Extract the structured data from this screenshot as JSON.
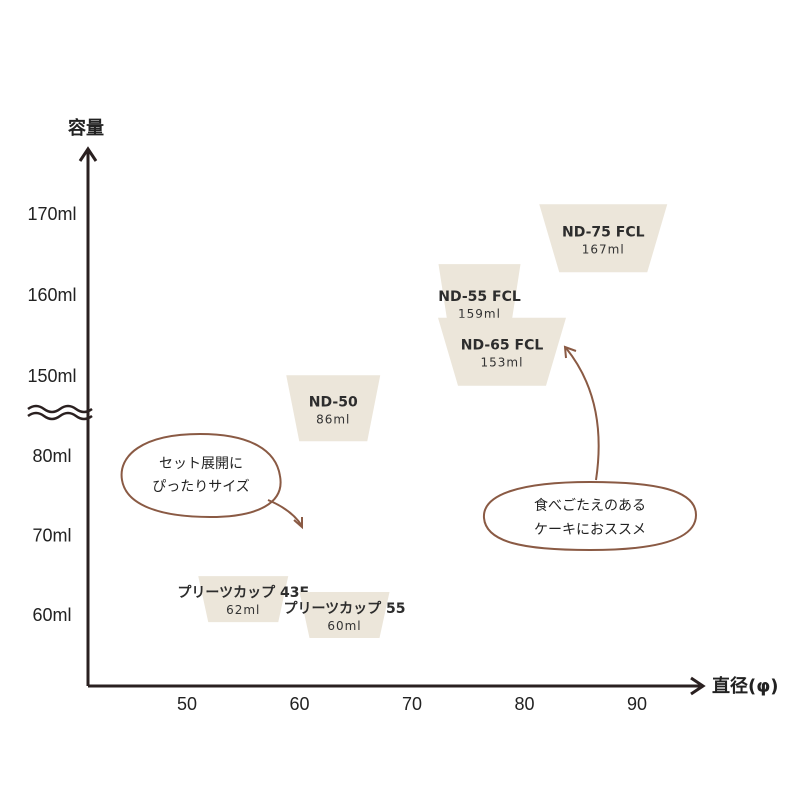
{
  "chart_data": {
    "type": "scatter",
    "xlabel": "直径(φ)",
    "ylabel": "容量",
    "x_ticks": [
      "50",
      "60",
      "70",
      "80",
      "90"
    ],
    "y_ticks": [
      "60ml",
      "70ml",
      "80ml",
      "150ml",
      "160ml",
      "170ml"
    ],
    "y_axis_break": true,
    "points": [
      {
        "name": "プリーツカップ 43F",
        "volume": "62ml",
        "x": 55,
        "y": 62
      },
      {
        "name": "プリーツカップ 55",
        "volume": "60ml",
        "x": 64,
        "y": 60
      },
      {
        "name": "ND-50",
        "volume": "86ml",
        "x": 63,
        "y": 86
      },
      {
        "name": "ND-55 FCL",
        "volume": "159ml",
        "x": 76,
        "y": 159
      },
      {
        "name": "ND-65 FCL",
        "volume": "153ml",
        "x": 78,
        "y": 153
      },
      {
        "name": "ND-75 FCL",
        "volume": "167ml",
        "x": 87,
        "y": 167
      }
    ],
    "annotations": [
      {
        "lines": [
          "セット展開に",
          "ぴったりサイズ"
        ]
      },
      {
        "lines": [
          "食べごたえのある",
          "ケーキにおススメ"
        ]
      }
    ]
  },
  "colors": {
    "cup": "#ece6da",
    "axis": "#2a2020",
    "bubble_stroke": "#8a5a44"
  }
}
